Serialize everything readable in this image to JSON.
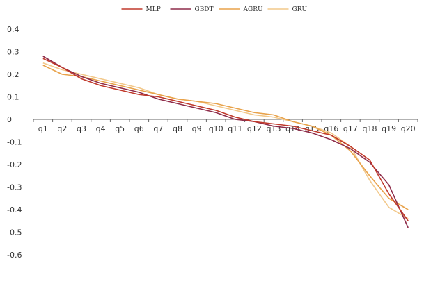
{
  "chart_data": {
    "type": "line",
    "title": "",
    "xlabel": "",
    "ylabel": "",
    "categories": [
      "q1",
      "q2",
      "q3",
      "q4",
      "q5",
      "q6",
      "q7",
      "q8",
      "q9",
      "q10",
      "q11",
      "q12",
      "q13",
      "q14",
      "q15",
      "q16",
      "q17",
      "q18",
      "q19",
      "q20"
    ],
    "ylim": [
      -0.6,
      0.4
    ],
    "yticks": [
      0.4,
      0.3,
      0.2,
      0.1,
      0,
      -0.1,
      -0.2,
      -0.3,
      -0.4,
      -0.5,
      -0.6
    ],
    "ytick_labels": [
      "0.4",
      "0.3",
      "0.2",
      "0.1",
      "0",
      "-0.1",
      "-0.2",
      "-0.3",
      "-0.4",
      "-0.5",
      "-0.6"
    ],
    "grid": false,
    "legend_position": "top",
    "series": [
      {
        "name": "MLP",
        "color": "#c0392b",
        "values": [
          0.27,
          0.23,
          0.18,
          0.15,
          0.13,
          0.11,
          0.1,
          0.08,
          0.06,
          0.04,
          0.01,
          -0.01,
          -0.02,
          -0.03,
          -0.05,
          -0.07,
          -0.12,
          -0.18,
          -0.33,
          -0.45
        ]
      },
      {
        "name": "GBDT",
        "color": "#8e2c4a",
        "values": [
          0.28,
          0.23,
          0.19,
          0.16,
          0.14,
          0.12,
          0.09,
          0.07,
          0.05,
          0.03,
          0.0,
          -0.01,
          -0.03,
          -0.04,
          -0.06,
          -0.09,
          -0.13,
          -0.19,
          -0.29,
          -0.48
        ]
      },
      {
        "name": "AGRU",
        "color": "#e8a24a",
        "values": [
          0.24,
          0.2,
          0.19,
          0.17,
          0.15,
          0.13,
          0.11,
          0.09,
          0.08,
          0.07,
          0.05,
          0.03,
          0.02,
          -0.01,
          -0.03,
          -0.07,
          -0.14,
          -0.25,
          -0.35,
          -0.4
        ]
      },
      {
        "name": "GRU",
        "color": "#f2c88a",
        "values": [
          0.25,
          0.22,
          0.2,
          0.18,
          0.16,
          0.14,
          0.11,
          0.09,
          0.08,
          0.06,
          0.04,
          0.02,
          0.01,
          -0.01,
          -0.03,
          -0.06,
          -0.12,
          -0.27,
          -0.39,
          -0.44
        ]
      }
    ]
  }
}
